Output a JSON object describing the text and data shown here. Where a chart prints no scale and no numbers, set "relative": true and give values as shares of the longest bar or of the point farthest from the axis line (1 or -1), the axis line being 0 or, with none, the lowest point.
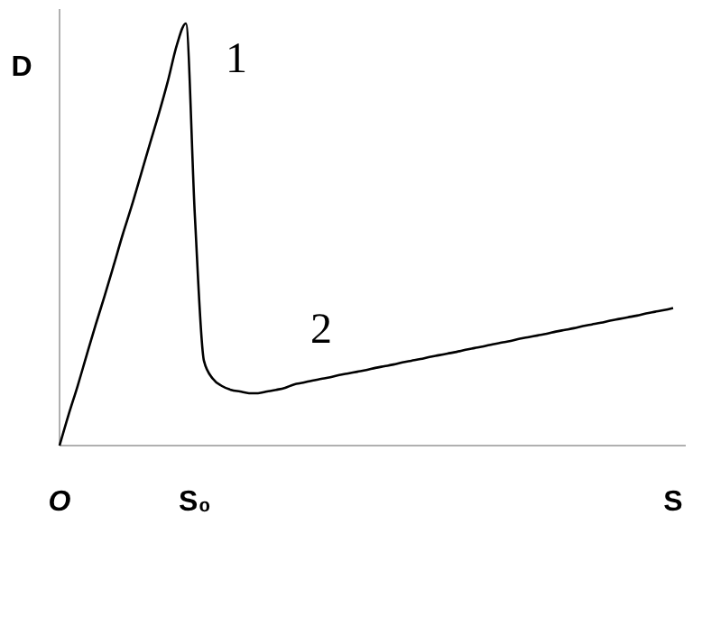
{
  "chart_data": {
    "type": "line",
    "relative": true,
    "xlabel": "S",
    "ylabel": "D",
    "categories": [
      "O",
      null,
      null,
      null,
      null,
      null,
      null,
      null,
      null,
      null,
      null,
      null,
      null,
      null,
      null,
      "S₀",
      null,
      null,
      null,
      null,
      null,
      null,
      null,
      null,
      null,
      null,
      null,
      null,
      null,
      null,
      null,
      null,
      null,
      null,
      null,
      null,
      null,
      null,
      null,
      null,
      null,
      null,
      null,
      null,
      null,
      null,
      null,
      null,
      null,
      null,
      null,
      null,
      null,
      null,
      null,
      null,
      null,
      null,
      null,
      null,
      null,
      null,
      null,
      null,
      null,
      null,
      null,
      null,
      null
    ],
    "series": [
      {
        "color": "#000000",
        "values": [
          0,
          0.073,
          0.141,
          0.214,
          0.286,
          0.355,
          0.427,
          0.5,
          0.568,
          0.641,
          0.714,
          0.786,
          0.863,
          0.949,
          1,
          0.543,
          0.201,
          0.158,
          0.141,
          0.132,
          0.128,
          0.124,
          0.124,
          0.128,
          0.132,
          0.137,
          0.145,
          0.149,
          0.154,
          0.158,
          0.162,
          0.167,
          0.171,
          0.175,
          0.179,
          0.184,
          0.188,
          0.192,
          0.197,
          0.201,
          0.205,
          0.21,
          0.214,
          0.218,
          0.222,
          0.227,
          0.231,
          0.235,
          0.24,
          0.244,
          0.248,
          0.253,
          0.257,
          0.261,
          0.265,
          0.27,
          0.274,
          0.278,
          0.283,
          0.287,
          0.291,
          0.296,
          0.3,
          0.304,
          0.308,
          0.313,
          0.317,
          0.321,
          0.326
        ]
      }
    ],
    "annotations": [
      "1",
      "2"
    ],
    "grid": false,
    "marker": "none",
    "line_style": "solid"
  }
}
